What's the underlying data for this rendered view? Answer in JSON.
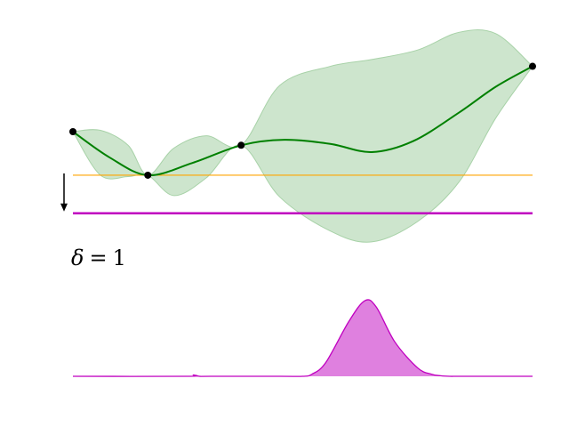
{
  "chart_data": [
    {
      "type": "line",
      "panel": "gaussian-process-posterior",
      "title": "",
      "xlabel": "",
      "ylabel": "",
      "xlim": [
        0,
        1
      ],
      "ylim": [
        -1.5,
        1.5
      ],
      "axes_visible": false,
      "grid": false,
      "legend": "none",
      "observations": {
        "x": [
          0.0,
          0.163,
          0.366,
          1.0
        ],
        "y": [
          0.0,
          -0.32,
          -0.1,
          0.48
        ]
      },
      "series": [
        {
          "role": "posterior-mean",
          "color": "#008000",
          "x": [
            0.0,
            0.08,
            0.163,
            0.26,
            0.366,
            0.46,
            0.56,
            0.65,
            0.74,
            0.84,
            0.92,
            1.0
          ],
          "y": [
            0.0,
            -0.19,
            -0.32,
            -0.23,
            -0.1,
            -0.06,
            -0.09,
            -0.15,
            -0.07,
            0.14,
            0.33,
            0.48
          ]
        },
        {
          "role": "confidence-band",
          "color": "#cde5cd",
          "edge_color": "#a8d2a8",
          "x": [
            0.0,
            0.06,
            0.12,
            0.163,
            0.22,
            0.29,
            0.366,
            0.45,
            0.56,
            0.65,
            0.75,
            0.84,
            0.92,
            1.0
          ],
          "upper": [
            0.0,
            0.01,
            -0.1,
            -0.32,
            -0.12,
            -0.03,
            -0.1,
            0.34,
            0.48,
            0.53,
            0.6,
            0.73,
            0.72,
            0.48
          ],
          "lower": [
            0.0,
            -0.32,
            -0.33,
            -0.32,
            -0.47,
            -0.34,
            -0.1,
            -0.48,
            -0.73,
            -0.81,
            -0.66,
            -0.37,
            0.1,
            0.48
          ]
        }
      ],
      "hlines": [
        {
          "role": "incumbent-best",
          "y": -0.32,
          "color": "#ffa500",
          "width": 1.2
        },
        {
          "role": "target-threshold",
          "y": -0.6,
          "color": "#c000c0",
          "width": 2.5
        }
      ],
      "arrow": {
        "from_y": -0.32,
        "to_y": -0.6,
        "color": "#000000"
      },
      "annotation": {
        "symbol": "δ",
        "operator": "=",
        "value": "1"
      }
    },
    {
      "type": "area",
      "panel": "acquisition-function",
      "title": "",
      "xlabel": "",
      "ylabel": "",
      "xlim": [
        0,
        1
      ],
      "ylim": [
        0,
        1
      ],
      "axes_visible": false,
      "grid": false,
      "legend": "none",
      "series": [
        {
          "role": "acquisition",
          "color": "#c000c0",
          "fill": "#df80df",
          "x": [
            0.0,
            0.25,
            0.262,
            0.275,
            0.3,
            0.45,
            0.5,
            0.52,
            0.55,
            0.6,
            0.635,
            0.66,
            0.7,
            0.75,
            0.78,
            0.8,
            0.82,
            0.85,
            1.0
          ],
          "y": [
            0.0,
            0.0,
            0.012,
            0.0,
            0.0,
            0.0,
            0.0,
            0.02,
            0.13,
            0.52,
            0.72,
            0.66,
            0.33,
            0.08,
            0.02,
            0.005,
            0.0,
            0.0,
            0.0
          ]
        }
      ]
    }
  ]
}
